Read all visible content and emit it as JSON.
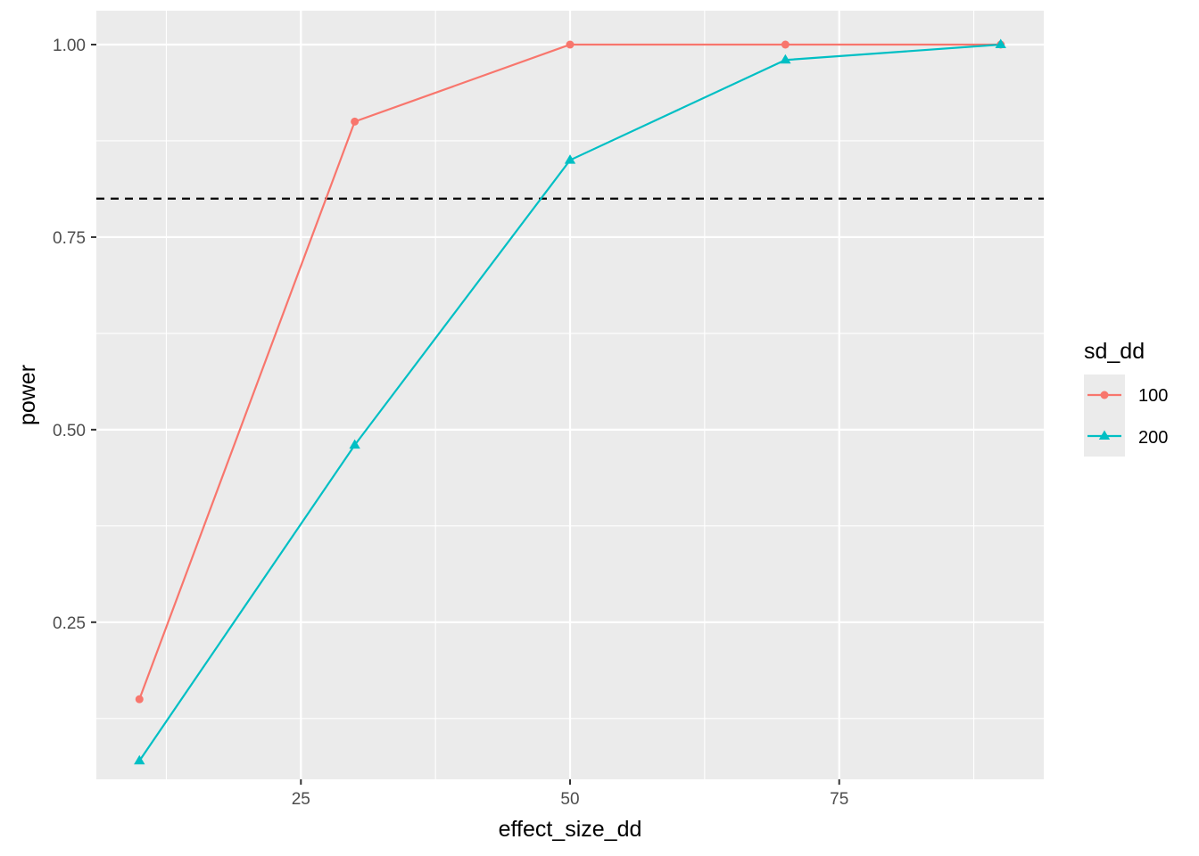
{
  "chart_data": {
    "type": "line",
    "xlabel": "effect_size_dd",
    "ylabel": "power",
    "xlim": [
      6,
      94
    ],
    "ylim": [
      0.046,
      1.044
    ],
    "x_ticks": [
      25,
      50,
      75
    ],
    "x_tick_labels": [
      "25",
      "50",
      "75"
    ],
    "x_minor_ticks": [
      12.5,
      37.5,
      62.5,
      87.5
    ],
    "y_ticks": [
      0.25,
      0.5,
      0.75,
      1.0
    ],
    "y_tick_labels": [
      "0.25",
      "0.50",
      "0.75",
      "1.00"
    ],
    "y_minor_ticks": [
      0.125,
      0.375,
      0.625,
      0.875
    ],
    "grid": true,
    "reference_line": {
      "y": 0.8,
      "style": "dashed",
      "color": "#000000"
    },
    "legend": {
      "title": "sd_dd",
      "placement": "right"
    },
    "series": [
      {
        "name": "100",
        "color": "#F8766D",
        "marker": "circle",
        "x": [
          10,
          30,
          50,
          70,
          90
        ],
        "y": [
          0.15,
          0.9,
          1.0,
          1.0,
          1.0
        ]
      },
      {
        "name": "200",
        "color": "#00BFC4",
        "marker": "triangle",
        "x": [
          10,
          30,
          50,
          70,
          90
        ],
        "y": [
          0.07,
          0.48,
          0.85,
          0.98,
          1.0
        ]
      }
    ]
  }
}
